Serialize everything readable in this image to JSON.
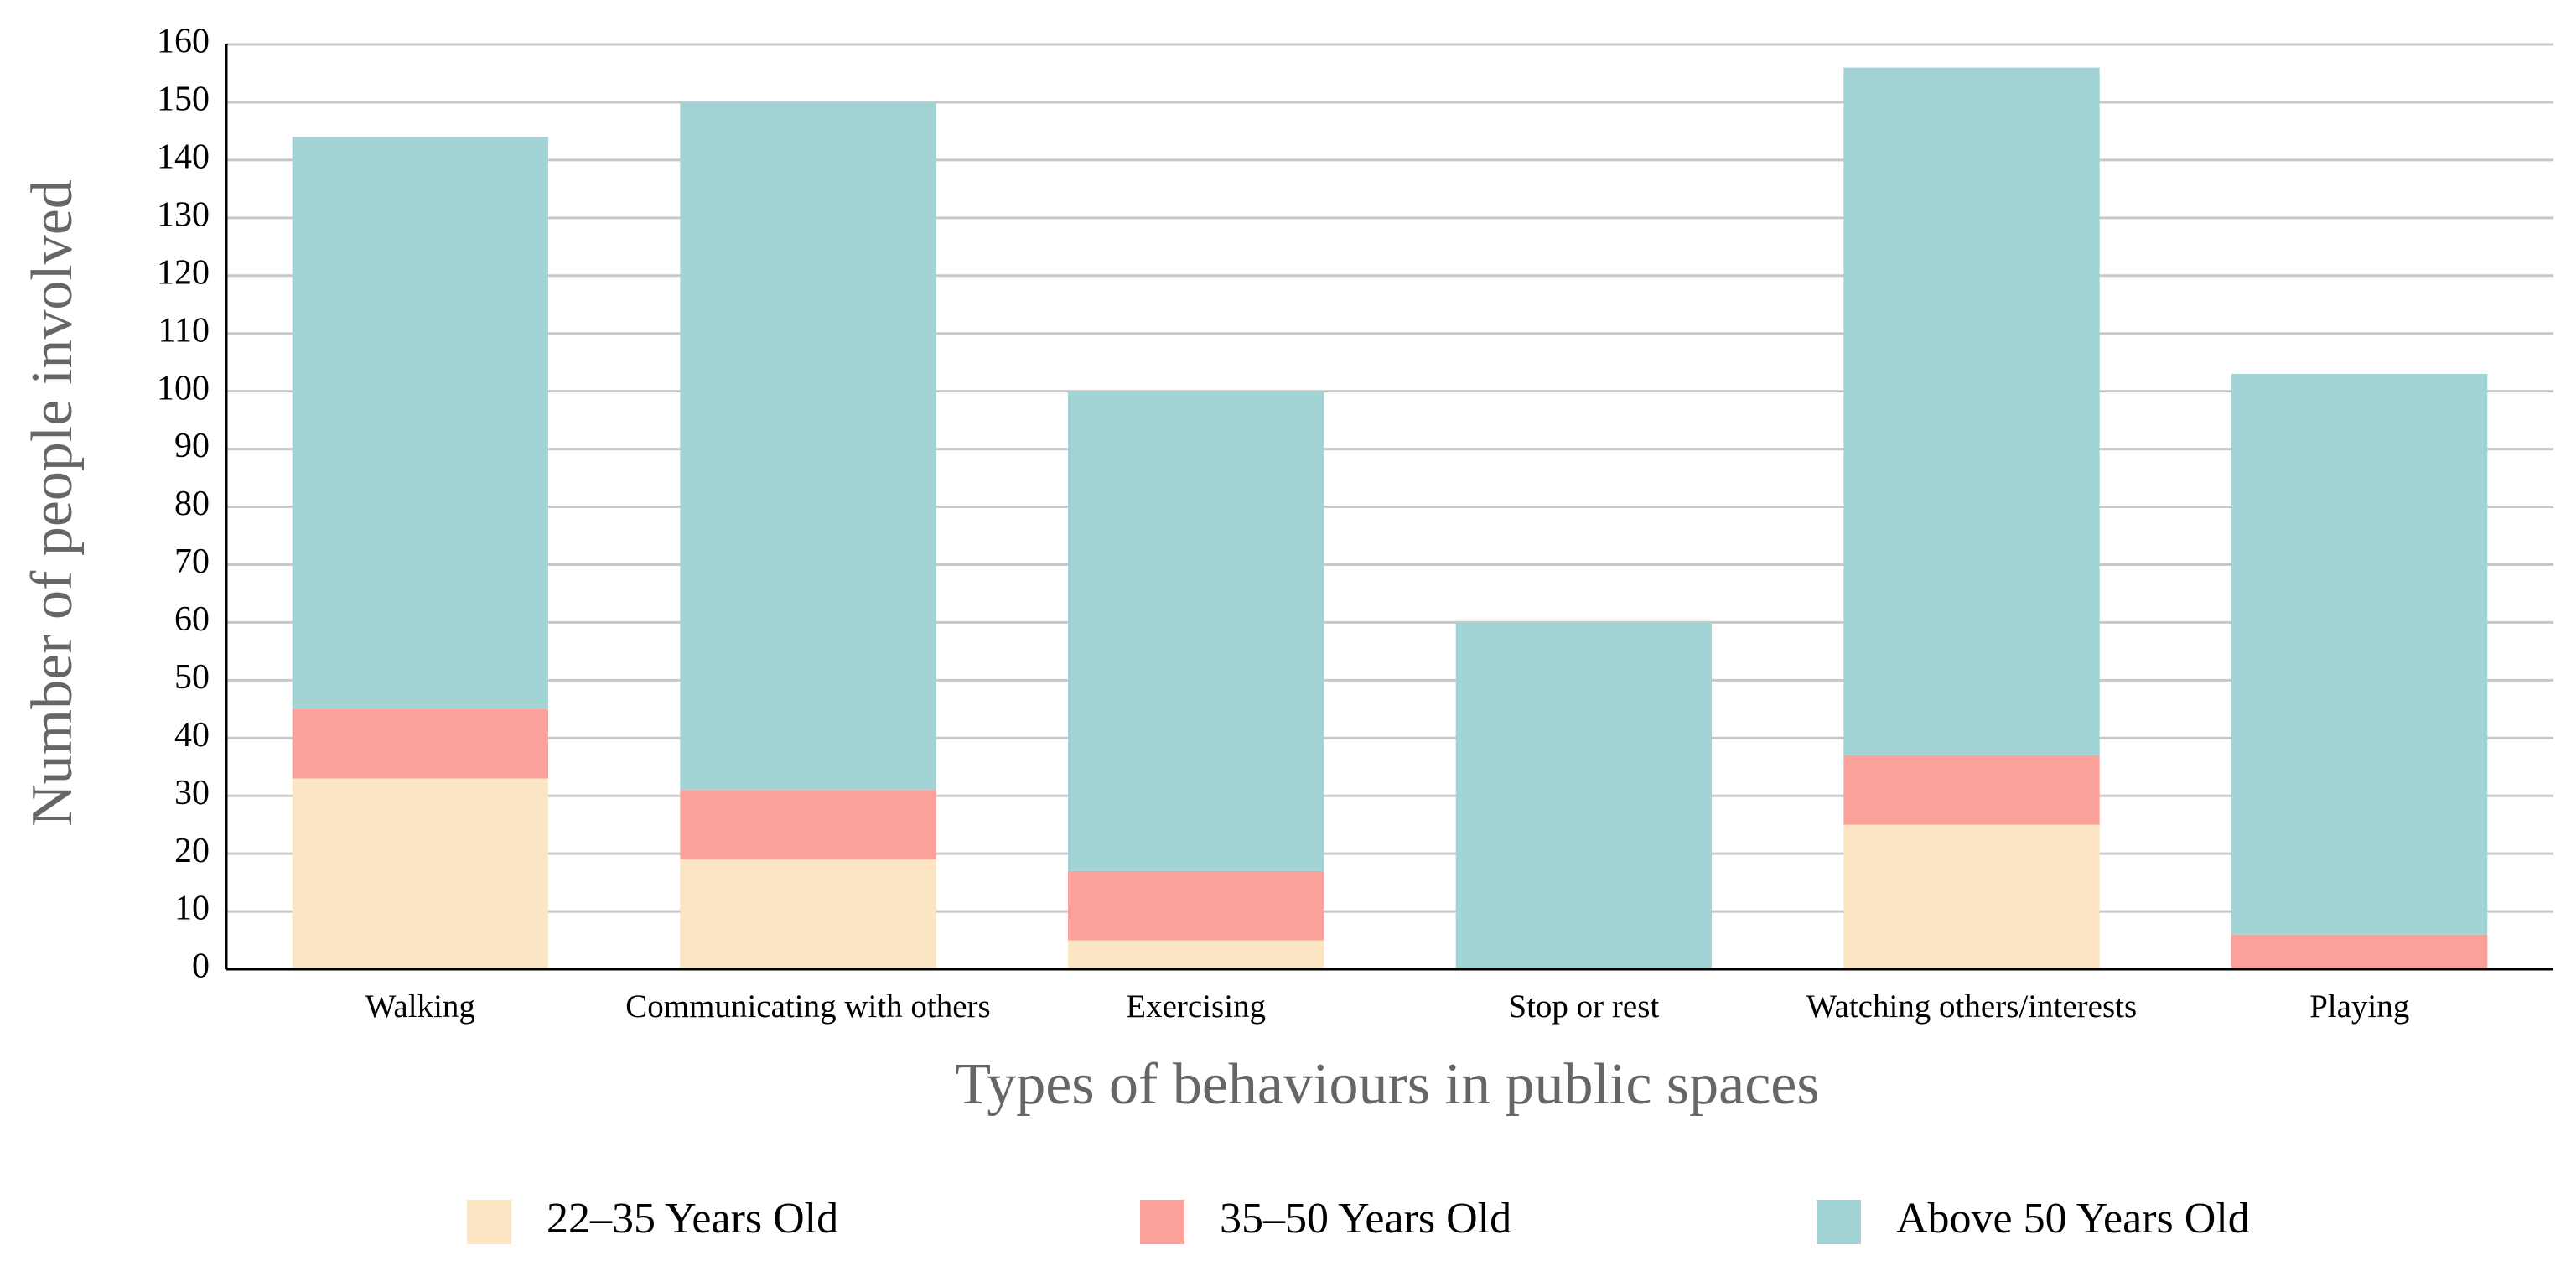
{
  "chart_data": {
    "type": "stacked_bar",
    "x_label": "Types of behaviours in public spaces",
    "y_label": "Number of people involved",
    "categories": [
      "Walking",
      "Communicating with others",
      "Exercising",
      "Stop or rest",
      "Watching others/interests",
      "Playing"
    ],
    "series": [
      {
        "name": "22–35 Years Old",
        "color": "#fbe5c3",
        "values": [
          33,
          19,
          5,
          0,
          25,
          0
        ]
      },
      {
        "name": "35–50 Years Old",
        "color": "#fca19a",
        "values": [
          12,
          12,
          12,
          0,
          12,
          6
        ]
      },
      {
        "name": "Above 50 Years Old",
        "color": "#a3d4d5",
        "values": [
          99,
          119,
          83,
          60,
          119,
          97
        ]
      }
    ],
    "ylim": [
      0,
      160
    ],
    "yticks": [
      0,
      10,
      20,
      30,
      40,
      50,
      60,
      70,
      80,
      90,
      100,
      110,
      120,
      130,
      140,
      150,
      160
    ],
    "grid": true,
    "legend": "bottom"
  }
}
